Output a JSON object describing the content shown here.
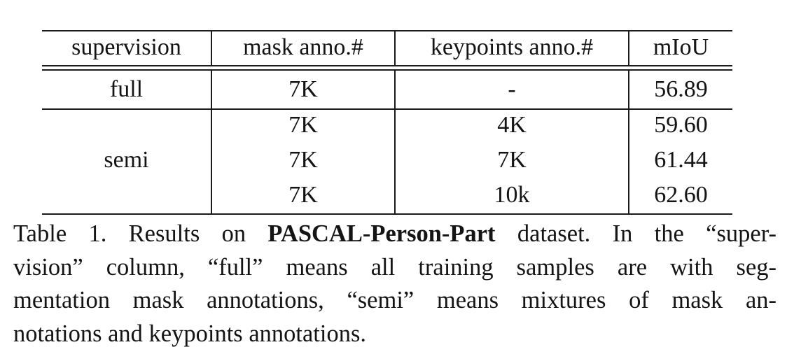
{
  "table": {
    "headers": {
      "supervision": "supervision",
      "mask": "mask anno.#",
      "keypoints": "keypoints anno.#",
      "miou": "mIoU"
    },
    "rows": [
      {
        "supervision": "full",
        "mask": "7K",
        "keypoints": "-",
        "miou": "56.89"
      },
      {
        "supervision": "",
        "mask": "7K",
        "keypoints": "4K",
        "miou": "59.60"
      },
      {
        "supervision": "semi",
        "mask": "7K",
        "keypoints": "7K",
        "miou": "61.44"
      },
      {
        "supervision": "",
        "mask": "7K",
        "keypoints": "10k",
        "miou": "62.60"
      }
    ]
  },
  "caption": {
    "label": "Table 1.",
    "pre": "Results on",
    "bold": "PASCAL-Person-Part",
    "line1_rest": "dataset. In the “super-",
    "line2": "vision” column, “full” means all training samples are with seg-",
    "line3": "mentation mask annotations, “semi” means mixtures of mask an-",
    "line4": "notations and keypoints annotations."
  }
}
